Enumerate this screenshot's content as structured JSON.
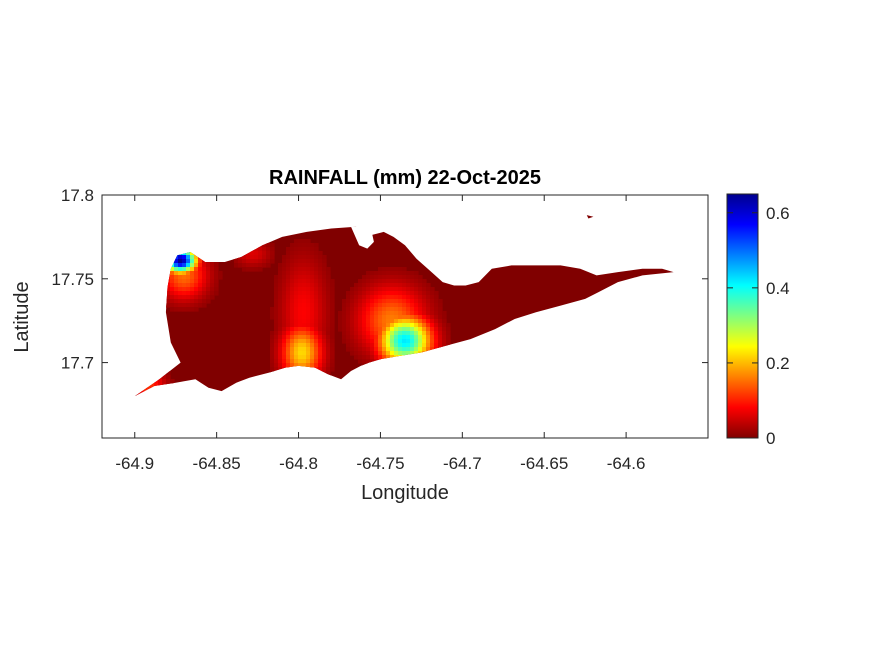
{
  "chart_data": {
    "type": "heatmap",
    "title": "RAINFALL (mm) 22-Oct-2025",
    "xlabel": "Longitude",
    "ylabel": "Latitude",
    "xlim": [
      -64.92,
      -64.55
    ],
    "ylim": [
      17.655,
      17.8
    ],
    "xticks": [
      -64.9,
      -64.85,
      -64.8,
      -64.75,
      -64.7,
      -64.65,
      -64.6
    ],
    "xtick_labels": [
      "-64.9",
      "-64.85",
      "-64.8",
      "-64.75",
      "-64.7",
      "-64.65",
      "-64.6"
    ],
    "yticks": [
      17.7,
      17.75,
      17.8
    ],
    "ytick_labels": [
      "17.7",
      "17.75",
      "17.8"
    ],
    "colorbar": {
      "min": 0,
      "max": 0.65,
      "ticks": [
        0,
        0.2,
        0.4,
        0.6
      ],
      "tick_labels": [
        "0",
        "0.2",
        "0.4",
        "0.6"
      ],
      "colormap": "jet",
      "colors": [
        "#800000",
        "#ff0000",
        "#ffff00",
        "#00ffff",
        "#0000ff",
        "#00008f"
      ]
    },
    "region_outline": [
      [
        -64.9,
        17.68
      ],
      [
        -64.885,
        17.69
      ],
      [
        -64.872,
        17.7
      ],
      [
        -64.878,
        17.712
      ],
      [
        -64.881,
        17.73
      ],
      [
        -64.88,
        17.745
      ],
      [
        -64.878,
        17.756
      ],
      [
        -64.874,
        17.764
      ],
      [
        -64.866,
        17.766
      ],
      [
        -64.857,
        17.76
      ],
      [
        -64.845,
        17.76
      ],
      [
        -64.835,
        17.763
      ],
      [
        -64.822,
        17.77
      ],
      [
        -64.81,
        17.775
      ],
      [
        -64.795,
        17.778
      ],
      [
        -64.78,
        17.78
      ],
      [
        -64.765,
        17.781
      ],
      [
        -64.756,
        17.776
      ],
      [
        -64.748,
        17.778
      ],
      [
        -64.742,
        17.775
      ],
      [
        -64.735,
        17.77
      ],
      [
        -64.728,
        17.762
      ],
      [
        -64.72,
        17.755
      ],
      [
        -64.712,
        17.748
      ],
      [
        -64.705,
        17.746
      ],
      [
        -64.698,
        17.746
      ],
      [
        -64.69,
        17.748
      ],
      [
        -64.682,
        17.756
      ],
      [
        -64.67,
        17.758
      ],
      [
        -64.655,
        17.758
      ],
      [
        -64.64,
        17.758
      ],
      [
        -64.628,
        17.756
      ],
      [
        -64.618,
        17.752
      ],
      [
        -64.605,
        17.754
      ],
      [
        -64.59,
        17.756
      ],
      [
        -64.578,
        17.756
      ],
      [
        -64.571,
        17.754
      ],
      [
        -64.59,
        17.752
      ],
      [
        -64.605,
        17.748
      ],
      [
        -64.617,
        17.742
      ],
      [
        -64.625,
        17.738
      ],
      [
        -64.64,
        17.734
      ],
      [
        -64.655,
        17.73
      ],
      [
        -64.668,
        17.726
      ],
      [
        -64.68,
        17.72
      ],
      [
        -64.695,
        17.714
      ],
      [
        -64.71,
        17.71
      ],
      [
        -64.725,
        17.706
      ],
      [
        -64.738,
        17.704
      ],
      [
        -64.75,
        17.702
      ],
      [
        -64.757,
        17.7
      ],
      [
        -64.762,
        17.698
      ],
      [
        -64.768,
        17.695
      ],
      [
        -64.774,
        17.69
      ],
      [
        -64.782,
        17.693
      ],
      [
        -64.79,
        17.697
      ],
      [
        -64.8,
        17.698
      ],
      [
        -64.808,
        17.697
      ],
      [
        -64.818,
        17.694
      ],
      [
        -64.83,
        17.691
      ],
      [
        -64.838,
        17.688
      ],
      [
        -64.847,
        17.683
      ],
      [
        -64.855,
        17.685
      ],
      [
        -64.863,
        17.69
      ],
      [
        -64.875,
        17.688
      ],
      [
        -64.888,
        17.686
      ]
    ],
    "notch_outline": [
      [
        -64.768,
        17.781
      ],
      [
        -64.763,
        17.77
      ],
      [
        -64.758,
        17.768
      ],
      [
        -64.754,
        17.772
      ],
      [
        -64.756,
        17.781
      ]
    ],
    "islet_outline": [
      [
        -64.624,
        17.788
      ],
      [
        -64.62,
        17.787
      ],
      [
        -64.623,
        17.786
      ]
    ],
    "hotspots": [
      {
        "lon": -64.872,
        "lat": 17.761,
        "value": 0.65,
        "spread_lon": 0.009,
        "spread_lat": 0.007
      },
      {
        "lon": -64.87,
        "lat": 17.752,
        "value": 0.15,
        "spread_lon": 0.014,
        "spread_lat": 0.014
      },
      {
        "lon": -64.735,
        "lat": 17.713,
        "value": 0.42,
        "spread_lon": 0.015,
        "spread_lat": 0.014
      },
      {
        "lon": -64.743,
        "lat": 17.725,
        "value": 0.16,
        "spread_lon": 0.02,
        "spread_lat": 0.02
      },
      {
        "lon": -64.798,
        "lat": 17.706,
        "value": 0.22,
        "spread_lon": 0.012,
        "spread_lat": 0.016
      },
      {
        "lon": -64.797,
        "lat": 17.73,
        "value": 0.08,
        "spread_lon": 0.014,
        "spread_lat": 0.032
      },
      {
        "lon": -64.893,
        "lat": 17.687,
        "value": 0.12,
        "spread_lon": 0.011,
        "spread_lat": 0.008
      },
      {
        "lon": -64.828,
        "lat": 17.765,
        "value": 0.06,
        "spread_lon": 0.011,
        "spread_lat": 0.008
      }
    ]
  }
}
